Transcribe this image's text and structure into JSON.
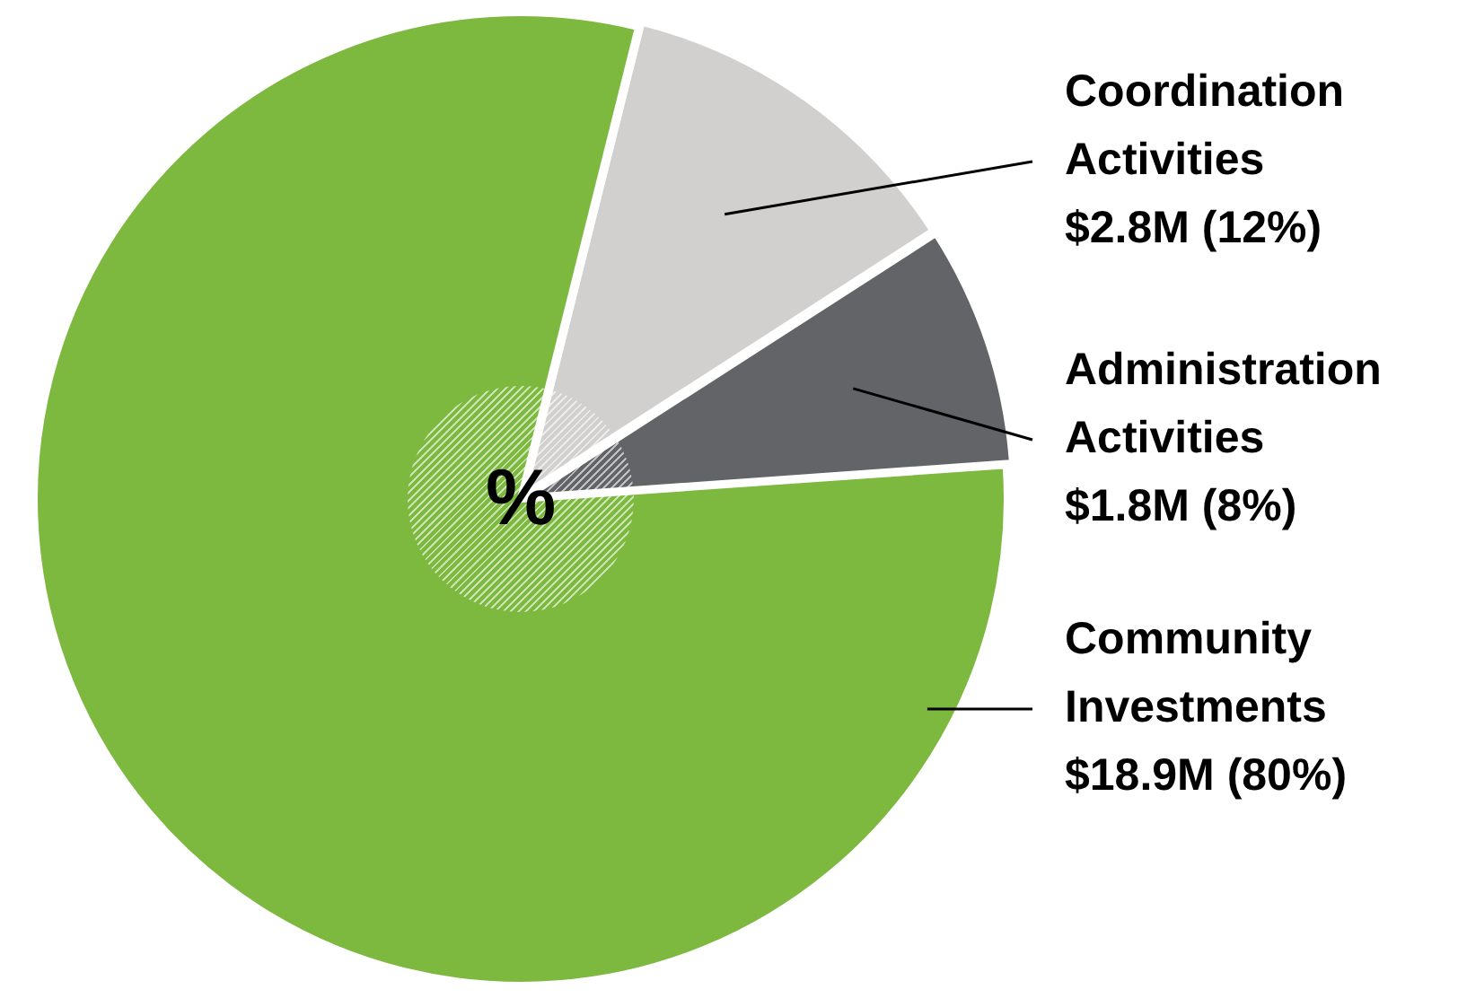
{
  "chart_data": {
    "type": "pie",
    "categories": [
      "Coordination Activities",
      "Administration Activities",
      "Community Investments"
    ],
    "values": [
      12,
      8,
      80
    ],
    "colors": [
      "#d1d0cf",
      "#636468",
      "#7db83f"
    ],
    "value_labels": [
      "$2.8M (12%)",
      "$1.8M (8%)",
      "$18.9M (80%)"
    ],
    "annotations": [
      "%"
    ]
  }
}
